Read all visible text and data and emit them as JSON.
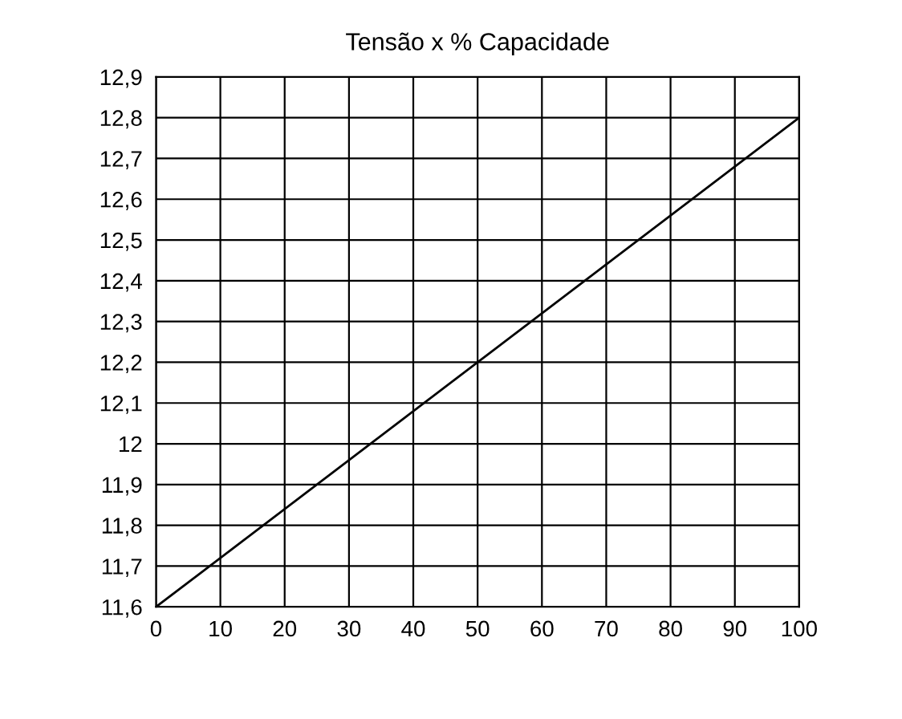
{
  "chart_data": {
    "type": "line",
    "title": "Tensão x % Capacidade",
    "x": [
      0,
      100
    ],
    "series": [
      {
        "color": "#000000",
        "values": [
          11.6,
          12.8
        ]
      }
    ],
    "xlim": [
      0,
      100
    ],
    "xticks": [
      0,
      10,
      20,
      30,
      40,
      50,
      60,
      70,
      80,
      90,
      100
    ],
    "ylim": [
      11.6,
      12.9
    ],
    "yticks": [
      {
        "value": 11.6,
        "label": "11,6"
      },
      {
        "value": 11.7,
        "label": "11,7"
      },
      {
        "value": 11.8,
        "label": "11,8"
      },
      {
        "value": 11.9,
        "label": "11,9"
      },
      12,
      {
        "value": 12.1,
        "label": "12,1"
      },
      {
        "value": 12.2,
        "label": "12,2"
      },
      {
        "value": 12.3,
        "label": "12,3"
      },
      {
        "value": 12.4,
        "label": "12,4"
      },
      {
        "value": 12.5,
        "label": "12,5"
      },
      {
        "value": 12.6,
        "label": "12,6"
      },
      {
        "value": 12.7,
        "label": "12,7"
      },
      {
        "value": 12.8,
        "label": "12,8"
      },
      {
        "value": 12.9,
        "label": "12,9"
      }
    ],
    "grid": true,
    "marker": "none",
    "line_style": "solid"
  }
}
